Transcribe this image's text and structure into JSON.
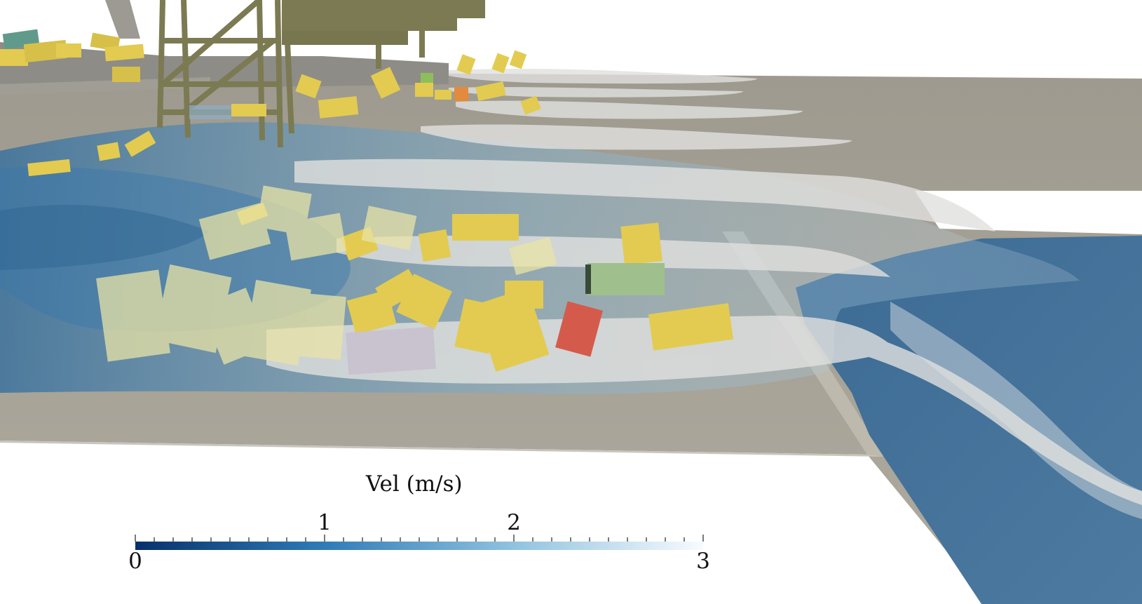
{
  "colorbar": {
    "title": "Vel (m/s)",
    "min": 0,
    "max": 3,
    "major_ticks": [
      {
        "value": 0,
        "label": "0",
        "position": "below"
      },
      {
        "value": 1,
        "label": "1",
        "position": "above"
      },
      {
        "value": 2,
        "label": "2",
        "position": "above"
      },
      {
        "value": 3,
        "label": "3",
        "position": "below"
      }
    ],
    "colors": [
      "#08306b",
      "#2f7bb6",
      "#8fc1de",
      "#f7fbff"
    ]
  },
  "scene": {
    "ground_color": "#aaa69a",
    "water_color": "#3f6d96",
    "foam_color": "#dcdcdc",
    "crane_color": "#7b7a52",
    "container_colors": [
      "#e2cb50",
      "#d45b4b",
      "#9fbf8c",
      "#c9c2cf"
    ]
  }
}
